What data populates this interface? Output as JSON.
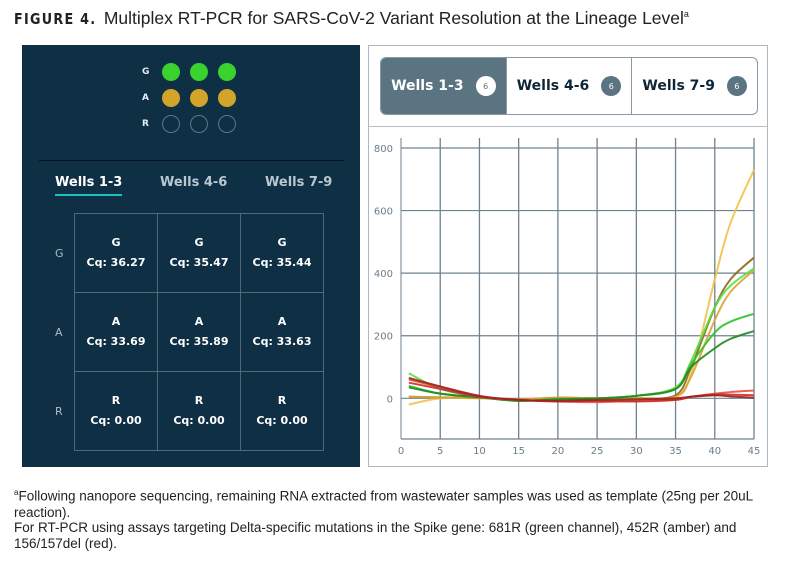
{
  "title": {
    "label": "FIGURE 4.",
    "text": "Multiplex RT-PCR for SARS-CoV-2 Variant Resolution at the Lineage Level",
    "sup": "a"
  },
  "plate": {
    "rows": [
      {
        "label": "G",
        "state": "filled",
        "color": "#3ad22e"
      },
      {
        "label": "A",
        "state": "filled",
        "color": "#d2a52a"
      },
      {
        "label": "R",
        "state": "empty",
        "color": "#5d7888"
      }
    ]
  },
  "left_tabs": [
    {
      "label": "Wells 1-3",
      "active": true
    },
    {
      "label": "Wells 4-6",
      "active": false
    },
    {
      "label": "Wells 7-9",
      "active": false
    }
  ],
  "grid": {
    "row_labels": [
      "G",
      "A",
      "R"
    ],
    "cells": [
      [
        {
          "ch": "G",
          "cq": "Cq: 36.27"
        },
        {
          "ch": "G",
          "cq": "Cq: 35.47"
        },
        {
          "ch": "G",
          "cq": "Cq: 35.44"
        }
      ],
      [
        {
          "ch": "A",
          "cq": "Cq: 33.69"
        },
        {
          "ch": "A",
          "cq": "Cq: 35.89"
        },
        {
          "ch": "A",
          "cq": "Cq: 33.63"
        }
      ],
      [
        {
          "ch": "R",
          "cq": "Cq: 0.00"
        },
        {
          "ch": "R",
          "cq": "Cq: 0.00"
        },
        {
          "ch": "R",
          "cq": "Cq: 0.00"
        }
      ]
    ]
  },
  "right_tabs": [
    {
      "label": "Wells 1-3",
      "count": "6",
      "active": true
    },
    {
      "label": "Wells 4-6",
      "count": "6",
      "active": false
    },
    {
      "label": "Wells 7-9",
      "count": "6",
      "active": false
    }
  ],
  "chart_data": {
    "type": "line",
    "xlim": [
      0,
      45
    ],
    "ylim": [
      -130,
      800
    ],
    "xticks": [
      0,
      5,
      10,
      15,
      20,
      25,
      30,
      35,
      40,
      45
    ],
    "yticks": [
      0,
      200,
      400,
      600,
      800
    ],
    "grid": true,
    "x": [
      1,
      5,
      10,
      15,
      20,
      25,
      30,
      35,
      37,
      40,
      42,
      45
    ],
    "series": [
      {
        "color": "#f0c24a",
        "values": [
          -20,
          0,
          0,
          -3,
          2,
          0,
          0,
          5,
          80,
          380,
          560,
          730
        ]
      },
      {
        "color": "#8b6a1c",
        "values": [
          5,
          3,
          2,
          -3,
          2,
          0,
          0,
          10,
          100,
          290,
          380,
          450
        ]
      },
      {
        "color": "#d9a535",
        "values": [
          5,
          3,
          2,
          -3,
          2,
          0,
          0,
          5,
          70,
          250,
          340,
          410
        ]
      },
      {
        "color": "#55e045",
        "values": [
          80,
          30,
          5,
          -8,
          -3,
          0,
          8,
          35,
          120,
          290,
          360,
          415
        ]
      },
      {
        "color": "#2fc22f",
        "values": [
          40,
          15,
          3,
          -8,
          -3,
          0,
          8,
          30,
          110,
          210,
          245,
          270
        ]
      },
      {
        "color": "#218a22",
        "values": [
          35,
          15,
          3,
          -8,
          -3,
          0,
          8,
          30,
          100,
          160,
          190,
          215
        ]
      },
      {
        "color": "#e8503c",
        "values": [
          60,
          35,
          5,
          -5,
          -10,
          -12,
          -8,
          -5,
          5,
          15,
          20,
          25
        ]
      },
      {
        "color": "#c83028",
        "values": [
          50,
          30,
          5,
          -5,
          -10,
          -8,
          -10,
          -5,
          5,
          12,
          12,
          10
        ]
      },
      {
        "color": "#9a2020",
        "values": [
          65,
          38,
          8,
          -5,
          -8,
          -5,
          -3,
          0,
          5,
          10,
          6,
          2
        ]
      }
    ]
  },
  "footnotes": [
    {
      "sup": "a",
      "text": "Following nanopore sequencing, remaining RNA extracted from wastewater samples was used as template (25ng per 20uL reaction)."
    },
    {
      "sup": "",
      "text": "For RT-PCR using assays targeting Delta-specific mutations in the Spike gene: 681R (green channel), 452R (amber) and 156/157del (red)."
    }
  ]
}
